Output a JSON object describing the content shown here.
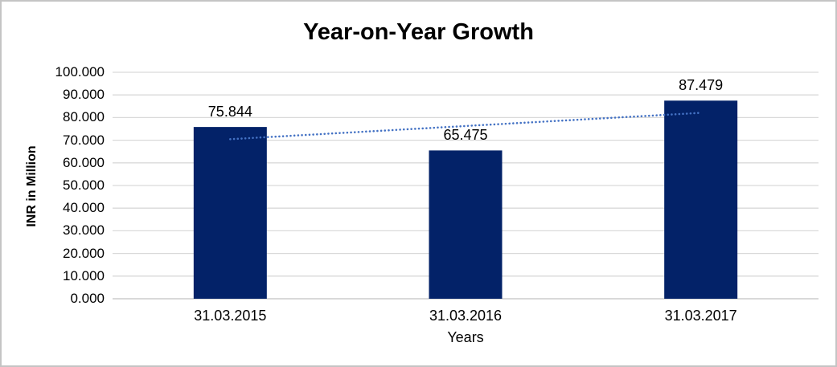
{
  "title": "Year-on-Year Growth",
  "chart_data": {
    "type": "bar",
    "title": "Year-on-Year Growth",
    "categories": [
      "31.03.2015",
      "31.03.2016",
      "31.03.2017"
    ],
    "values": [
      75.844,
      65.475,
      87.479
    ],
    "data_labels": [
      "75.844",
      "65.475",
      "87.479"
    ],
    "xlabel": "Years",
    "ylabel": "INR in Million",
    "ylim": [
      0,
      100
    ],
    "ytick_step": 10,
    "ytick_labels": [
      "0.000",
      "10.000",
      "20.000",
      "30.000",
      "40.000",
      "50.000",
      "60.000",
      "70.000",
      "80.000",
      "90.000",
      "100.000"
    ],
    "grid": true,
    "legend_position": "none",
    "bar_color": "#032268",
    "gridline_color": "#d9d9d9",
    "axisline_color": "#d9d9d9",
    "trendline": {
      "type": "linear",
      "style": "dotted",
      "color": "#4472c4",
      "values": [
        70.45,
        76.27,
        82.08
      ]
    }
  }
}
